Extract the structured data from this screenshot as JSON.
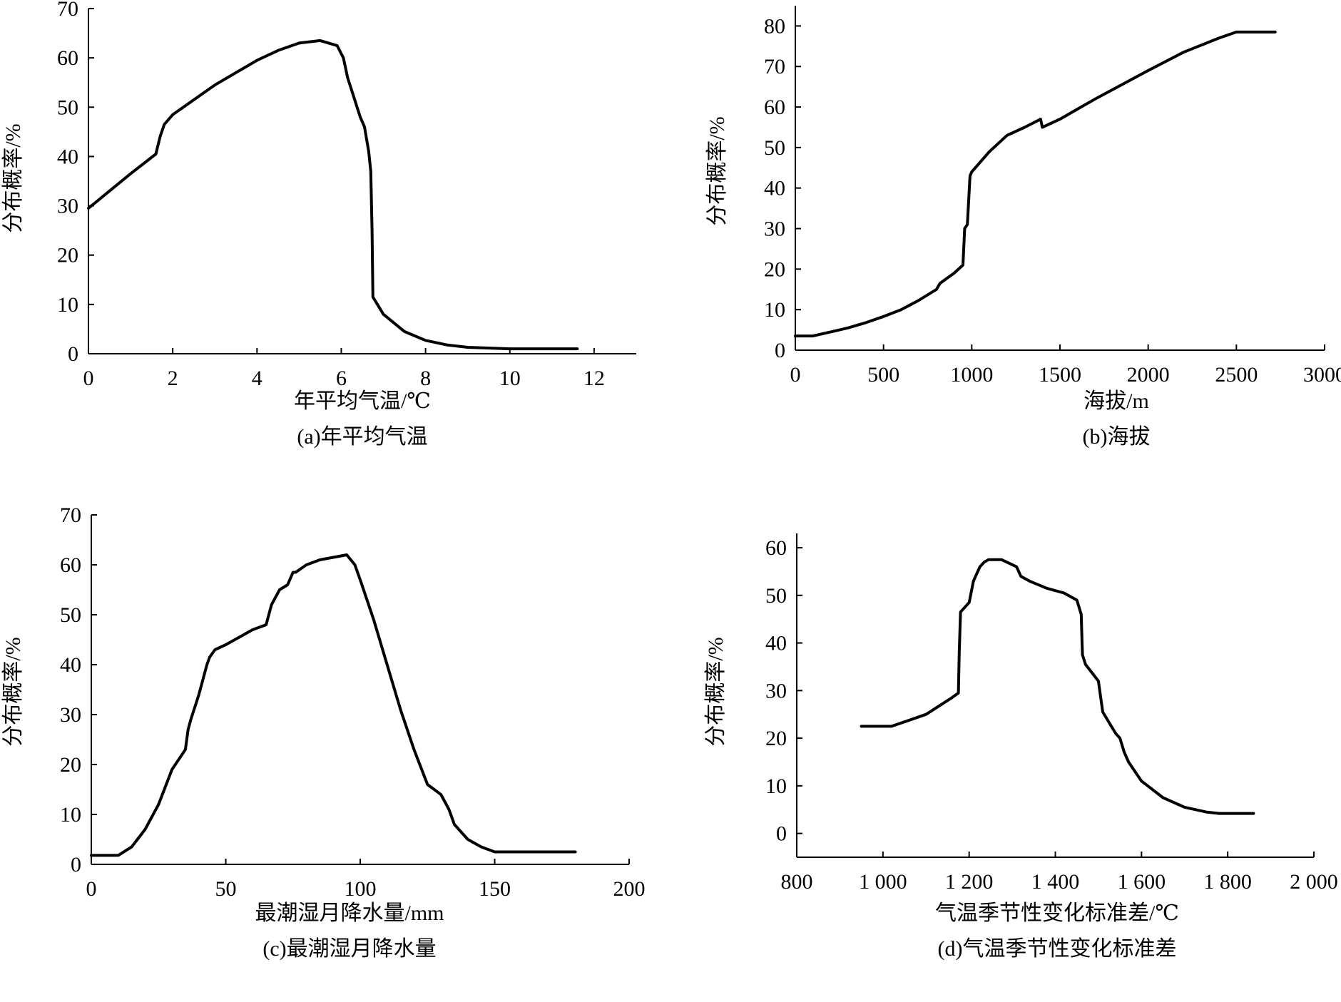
{
  "chart_data": [
    {
      "id": "a",
      "type": "line",
      "caption": "(a)年平均气温",
      "xlabel": "年平均气温/℃",
      "ylabel": "分布概率/%",
      "xlim": [
        0,
        13
      ],
      "ylim": [
        0,
        70
      ],
      "xticks": [
        0,
        2,
        4,
        6,
        8,
        10,
        12
      ],
      "xtick_labels": [
        "0",
        "2",
        "4",
        "6",
        "8",
        "10",
        "12"
      ],
      "yticks": [
        0,
        10,
        20,
        30,
        40,
        50,
        60,
        70
      ],
      "ytick_labels": [
        "0",
        "10",
        "20",
        "30",
        "40",
        "50",
        "60",
        "70"
      ],
      "x": [
        0,
        0.5,
        1,
        1.6,
        1.7,
        1.8,
        2,
        3,
        4,
        4.5,
        5,
        5.5,
        5.9,
        6.05,
        6.15,
        6.3,
        6.45,
        6.55,
        6.65,
        6.7,
        6.73,
        6.75,
        7,
        7.5,
        8,
        8.5,
        9,
        10,
        11,
        11.6
      ],
      "y": [
        29.5,
        33,
        36.5,
        40.5,
        44,
        46.5,
        48.5,
        54.5,
        59.5,
        61.5,
        63,
        63.5,
        62.5,
        60,
        56,
        52,
        48,
        46,
        41,
        37,
        25,
        11.5,
        8,
        4.5,
        2.7,
        1.8,
        1.3,
        1,
        1,
        1
      ]
    },
    {
      "id": "b",
      "type": "line",
      "caption": "(b)海拔",
      "xlabel": "海拔/m",
      "ylabel": "分布概率/%",
      "xlim": [
        0,
        3000
      ],
      "ylim": [
        0,
        85
      ],
      "xticks": [
        0,
        500,
        1000,
        1500,
        2000,
        2500,
        3000
      ],
      "xtick_labels": [
        "0",
        "500",
        "1000",
        "1500",
        "2000",
        "2500",
        "3000"
      ],
      "yticks": [
        0,
        10,
        20,
        30,
        40,
        50,
        60,
        70,
        80
      ],
      "ytick_labels": [
        "0",
        "10",
        "20",
        "30",
        "40",
        "50",
        "60",
        "70",
        "80"
      ],
      "x": [
        0,
        100,
        200,
        300,
        400,
        500,
        600,
        700,
        800,
        820,
        900,
        950,
        960,
        975,
        990,
        1000,
        1100,
        1200,
        1300,
        1390,
        1400,
        1500,
        1600,
        1700,
        2000,
        2200,
        2400,
        2500,
        2720
      ],
      "y": [
        3.5,
        3.5,
        4.5,
        5.5,
        6.8,
        8.3,
        10,
        12.3,
        15,
        16.5,
        19,
        21,
        30,
        31,
        43,
        44,
        49,
        53,
        55,
        57,
        55,
        57,
        59.5,
        62,
        69,
        73.5,
        77,
        78.5,
        78.5
      ]
    },
    {
      "id": "c",
      "type": "line",
      "caption": "(c)最潮湿月降水量",
      "xlabel": "最潮湿月降水量/mm",
      "ylabel": "分布概率/%",
      "xlim": [
        0,
        200
      ],
      "ylim": [
        0,
        70
      ],
      "xticks": [
        0,
        50,
        100,
        150,
        200
      ],
      "xtick_labels": [
        "0",
        "50",
        "100",
        "150",
        "200"
      ],
      "yticks": [
        0,
        10,
        20,
        30,
        40,
        50,
        60,
        70
      ],
      "ytick_labels": [
        "0",
        "10",
        "20",
        "30",
        "40",
        "50",
        "60",
        "70"
      ],
      "x": [
        0,
        10,
        15,
        20,
        25,
        30,
        35,
        36,
        37,
        40,
        43,
        44,
        46,
        50,
        55,
        60,
        65,
        67,
        70,
        73,
        75,
        76,
        80,
        85,
        90,
        95,
        98,
        100,
        105,
        110,
        115,
        120,
        125,
        130,
        131,
        133,
        135,
        140,
        145,
        150,
        155,
        160,
        165,
        180
      ],
      "y": [
        1.8,
        1.8,
        3.5,
        7,
        12,
        19,
        23,
        27,
        29,
        34,
        40,
        41.5,
        43,
        44,
        45.5,
        47,
        48,
        52,
        55,
        56,
        58.5,
        58.5,
        60,
        61,
        61.5,
        62,
        60,
        57,
        49,
        40,
        31,
        23,
        16,
        14,
        13,
        11,
        8,
        5,
        3.5,
        2.5,
        2.5,
        2.5,
        2.5,
        2.5
      ]
    },
    {
      "id": "d",
      "type": "line",
      "caption": "(d)气温季节性变化标准差",
      "xlabel": "气温季节性变化标准差/℃",
      "ylabel": "分布概率/%",
      "xlim": [
        800,
        2000
      ],
      "ylim": [
        -5,
        63
      ],
      "xticks": [
        800,
        1000,
        1200,
        1400,
        1600,
        1800,
        2000
      ],
      "xtick_labels": [
        "800",
        "1 000",
        "1 200",
        "1 400",
        "1 600",
        "1 800",
        "2 000"
      ],
      "yticks": [
        0,
        10,
        20,
        30,
        40,
        50,
        60
      ],
      "ytick_labels": [
        "0",
        "10",
        "20",
        "30",
        "40",
        "50",
        "60"
      ],
      "x": [
        950,
        1020,
        1100,
        1160,
        1175,
        1177,
        1180,
        1200,
        1210,
        1215,
        1225,
        1235,
        1245,
        1275,
        1310,
        1320,
        1340,
        1380,
        1420,
        1450,
        1460,
        1462,
        1463,
        1470,
        1500,
        1510,
        1540,
        1550,
        1560,
        1570,
        1600,
        1650,
        1700,
        1750,
        1780,
        1860
      ],
      "y": [
        22.5,
        22.5,
        25,
        28.5,
        29.5,
        38,
        46.5,
        48.5,
        53,
        54,
        56,
        57,
        57.5,
        57.5,
        56,
        54,
        53,
        51.5,
        50.5,
        49,
        46,
        40,
        37.5,
        35.5,
        32,
        25.5,
        21,
        20,
        17,
        15,
        11,
        7.5,
        5.5,
        4.5,
        4.2,
        4.2
      ]
    }
  ]
}
